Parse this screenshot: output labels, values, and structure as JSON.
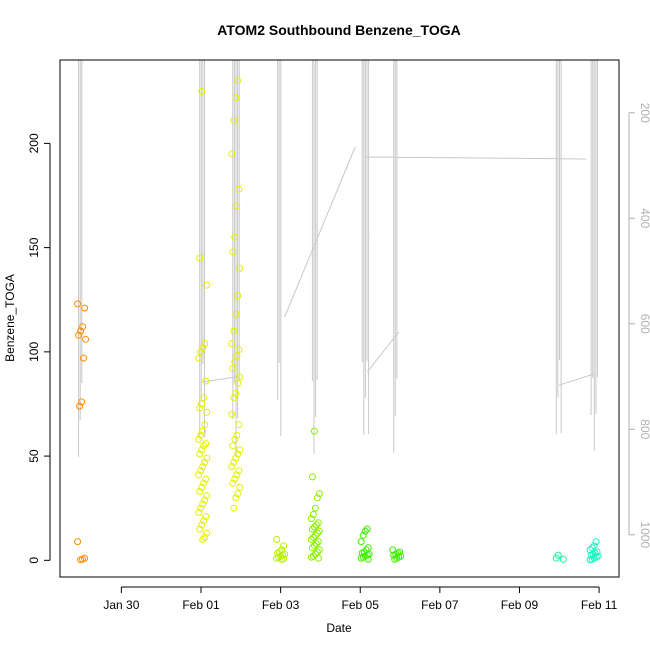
{
  "chart_data": {
    "type": "scatter",
    "title": "ATOM2 Southbound Benzene_TOGA",
    "xlabel": "Date",
    "ylabel": "Benzene_TOGA",
    "xlim": [
      "2017-01-28 11:00",
      "2017-02-11 12:00"
    ],
    "ylim": [
      -8,
      240
    ],
    "x_ticks": [
      {
        "date": "2017-01-30",
        "label": "Jan 30"
      },
      {
        "date": "2017-02-01",
        "label": "Feb 01"
      },
      {
        "date": "2017-02-03",
        "label": "Feb 03"
      },
      {
        "date": "2017-02-05",
        "label": "Feb 05"
      },
      {
        "date": "2017-02-07",
        "label": "Feb 07"
      },
      {
        "date": "2017-02-09",
        "label": "Feb 09"
      },
      {
        "date": "2017-02-11",
        "label": "Feb 11"
      }
    ],
    "y_ticks": [
      0,
      50,
      100,
      150,
      200
    ],
    "right_axis": {
      "ticks": [
        200,
        400,
        600,
        800,
        1000
      ],
      "range": [
        100,
        1080
      ],
      "reversed": true,
      "color": "#b0b0b0"
    },
    "grid": false,
    "point_groups": [
      {
        "date": "2017-01-29 00:00",
        "color": "#ff8c00",
        "values": [
          123,
          121,
          112,
          110,
          108,
          106,
          97,
          76,
          74,
          9,
          1,
          0.5,
          0.3
        ]
      },
      {
        "date": "2017-02-01 01:00",
        "color": "#e4f000",
        "values": [
          225,
          145,
          132,
          104,
          102,
          100,
          97,
          86,
          78,
          75,
          73,
          71,
          65,
          62,
          60,
          58,
          56,
          55,
          53,
          51,
          49,
          47,
          45,
          43,
          41,
          39,
          37,
          35,
          33,
          31,
          29,
          27,
          25,
          23,
          21,
          19,
          17,
          15,
          13,
          11,
          10
        ]
      },
      {
        "date": "2017-02-01 21:00",
        "color": "#e4f000",
        "values": [
          230,
          222,
          211,
          195,
          178,
          170,
          155,
          148,
          140,
          127,
          118,
          110,
          104,
          101,
          98,
          95,
          92,
          88,
          85,
          80,
          78,
          70,
          65,
          60,
          58,
          55,
          53,
          51,
          49,
          47,
          45,
          43,
          41,
          39,
          37,
          35,
          32,
          30,
          25
        ]
      },
      {
        "date": "2017-02-03 00:00",
        "color": "#b9f200",
        "values": [
          10,
          7,
          5,
          4,
          3.5,
          3,
          2.5,
          2,
          1.5,
          1,
          0.8,
          0.5
        ]
      },
      {
        "date": "2017-02-03 21:00",
        "color": "#8af000",
        "values": [
          62,
          40,
          32,
          30,
          25,
          22,
          20,
          18,
          17,
          16,
          15,
          14,
          13,
          12,
          11,
          10,
          9,
          8,
          7,
          6,
          5,
          4,
          3,
          2,
          1.5,
          1
        ]
      },
      {
        "date": "2017-02-05 03:00",
        "color": "#3ff000",
        "values": [
          15,
          14,
          12,
          9,
          6,
          5,
          4,
          3.5,
          3,
          2.5,
          2,
          1.5,
          1,
          0.5
        ]
      },
      {
        "date": "2017-02-05 22:00",
        "color": "#3ff000",
        "values": [
          5,
          4,
          3.5,
          3,
          2.5,
          2,
          1.5,
          1,
          0.5
        ]
      },
      {
        "date": "2017-02-10 00:00",
        "color": "#1df29a",
        "values": [
          2.5,
          1,
          0.5
        ]
      },
      {
        "date": "2017-02-10 21:00",
        "color": "#1df2c0",
        "values": [
          9,
          7,
          6,
          5,
          4,
          3.5,
          3,
          2.5,
          2,
          1.5,
          1,
          0.5,
          0.2
        ]
      }
    ]
  }
}
